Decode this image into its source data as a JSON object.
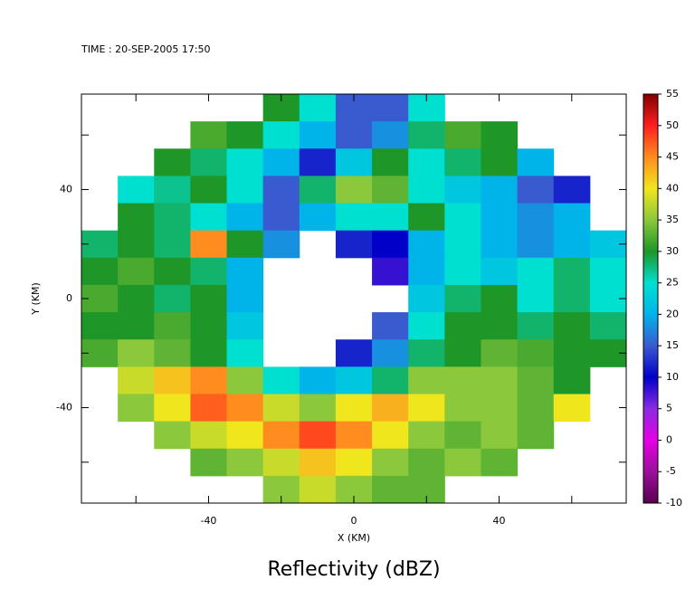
{
  "chart_data": {
    "type": "heatmap",
    "time_label": "TIME : 20-SEP-2005 17:50",
    "title": "Reflectivity (dBZ)",
    "xlabel": "X (KM)",
    "ylabel": "Y (KM)",
    "xlim": [
      -75,
      75
    ],
    "ylim": [
      -75,
      75
    ],
    "xticks": [
      -40,
      0,
      40
    ],
    "yticks": [
      -40,
      0,
      40
    ],
    "xticks_minor": [
      -60,
      -20,
      20,
      60
    ],
    "yticks_minor": [
      -60,
      -20,
      20,
      60
    ],
    "x": [
      -70,
      -60,
      -50,
      -40,
      -30,
      -20,
      -10,
      0,
      10,
      20,
      30,
      40,
      50,
      60,
      70
    ],
    "y": [
      70,
      60,
      50,
      40,
      30,
      20,
      10,
      0,
      -10,
      -20,
      -30,
      -40,
      -50,
      -60,
      -70
    ],
    "z": [
      [
        null,
        null,
        null,
        null,
        null,
        30,
        25,
        15,
        15,
        25,
        null,
        null,
        null,
        null,
        null
      ],
      [
        null,
        null,
        null,
        32,
        30,
        25,
        20,
        15,
        18,
        28,
        32,
        30,
        null,
        null,
        null
      ],
      [
        null,
        null,
        30,
        28,
        25,
        20,
        12,
        22,
        30,
        25,
        28,
        30,
        20,
        null,
        null
      ],
      [
        null,
        25,
        27,
        30,
        25,
        15,
        28,
        35,
        33,
        25,
        22,
        20,
        15,
        12,
        null
      ],
      [
        null,
        30,
        28,
        25,
        20,
        15,
        20,
        25,
        25,
        30,
        25,
        20,
        18,
        20,
        null
      ],
      [
        28,
        30,
        28,
        45,
        30,
        18,
        null,
        12,
        10,
        20,
        25,
        20,
        18,
        20,
        22
      ],
      [
        30,
        32,
        30,
        28,
        20,
        null,
        null,
        null,
        8,
        20,
        25,
        22,
        25,
        28,
        25
      ],
      [
        32,
        30,
        28,
        30,
        20,
        null,
        null,
        null,
        null,
        22,
        28,
        30,
        25,
        28,
        25
      ],
      [
        30,
        30,
        32,
        30,
        22,
        null,
        null,
        null,
        15,
        25,
        30,
        30,
        28,
        30,
        28
      ],
      [
        32,
        35,
        33,
        30,
        25,
        null,
        null,
        12,
        18,
        28,
        30,
        33,
        32,
        30,
        30
      ],
      [
        null,
        38,
        42,
        45,
        35,
        25,
        20,
        22,
        28,
        35,
        35,
        35,
        33,
        30,
        null
      ],
      [
        null,
        35,
        40,
        47,
        45,
        38,
        35,
        40,
        43,
        40,
        35,
        35,
        33,
        40,
        null
      ],
      [
        null,
        null,
        35,
        38,
        40,
        45,
        48,
        45,
        40,
        35,
        33,
        35,
        33,
        null,
        null
      ],
      [
        null,
        null,
        null,
        33,
        35,
        38,
        42,
        40,
        35,
        33,
        35,
        33,
        null,
        null,
        null
      ],
      [
        null,
        null,
        null,
        null,
        null,
        35,
        38,
        35,
        33,
        33,
        null,
        null,
        null,
        null,
        null
      ]
    ],
    "clim": [
      -10,
      55
    ],
    "cticks": [
      -10,
      -5,
      0,
      5,
      10,
      15,
      20,
      25,
      30,
      35,
      40,
      45,
      50,
      55
    ],
    "ccolors": [
      "#5a0050",
      "#9a109a",
      "#e600e6",
      "#8a2be2",
      "#0000c8",
      "#3a5ad0",
      "#00b4ea",
      "#00e0d0",
      "#1e9628",
      "#8cc83c",
      "#f0e61e",
      "#ff8c1e",
      "#ff1e1e",
      "#800000"
    ]
  }
}
